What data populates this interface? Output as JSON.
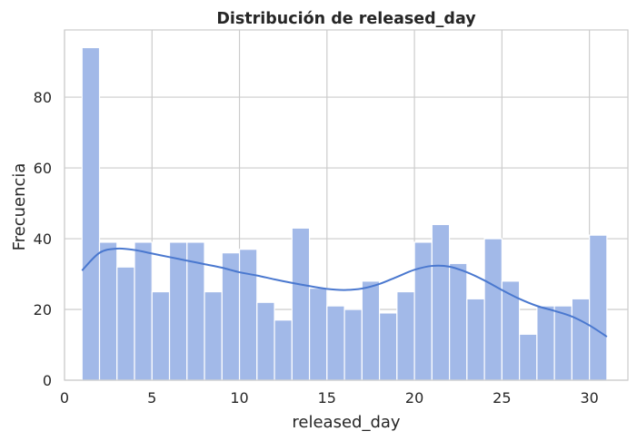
{
  "chart_data": {
    "type": "bar",
    "title": "Distribución de released_day",
    "xlabel": "released_day",
    "ylabel": "Frecuencia",
    "xlim": [
      0,
      32.2
    ],
    "ylim": [
      0,
      99
    ],
    "xticks": [
      0,
      5,
      10,
      15,
      20,
      25,
      30
    ],
    "yticks": [
      0,
      20,
      40,
      60,
      80
    ],
    "grid": true,
    "bins": {
      "start": 1,
      "width": 1,
      "values": [
        94,
        39,
        32,
        39,
        25,
        39,
        39,
        25,
        36,
        37,
        22,
        17,
        43,
        26,
        21,
        20,
        28,
        19,
        25,
        39,
        44,
        33,
        23,
        40,
        28,
        13,
        21,
        21,
        23,
        41
      ]
    },
    "kde": {
      "x": [
        1,
        2,
        3,
        4,
        5,
        6,
        7,
        8,
        9,
        10,
        11,
        12,
        13,
        14,
        15,
        16,
        17,
        18,
        19,
        20,
        21,
        22,
        23,
        24,
        25,
        26,
        27,
        28,
        29,
        30,
        31
      ],
      "y": [
        31,
        36,
        37.2,
        36.8,
        35.8,
        34.8,
        33.8,
        32.8,
        31.8,
        30.5,
        29.6,
        28.5,
        27.5,
        26.6,
        25.8,
        25.5,
        25.9,
        27.2,
        29.2,
        31.2,
        32.3,
        32.1,
        30.5,
        28.2,
        25.5,
        23,
        21,
        19.6,
        18,
        15.5,
        12.3
      ]
    },
    "colors": {
      "bar_fill": "#a2b9e8",
      "bar_edge": "#ffffff",
      "kde_line": "#4a78cf",
      "grid": "#cccccc",
      "frame": "#cccccc"
    }
  }
}
